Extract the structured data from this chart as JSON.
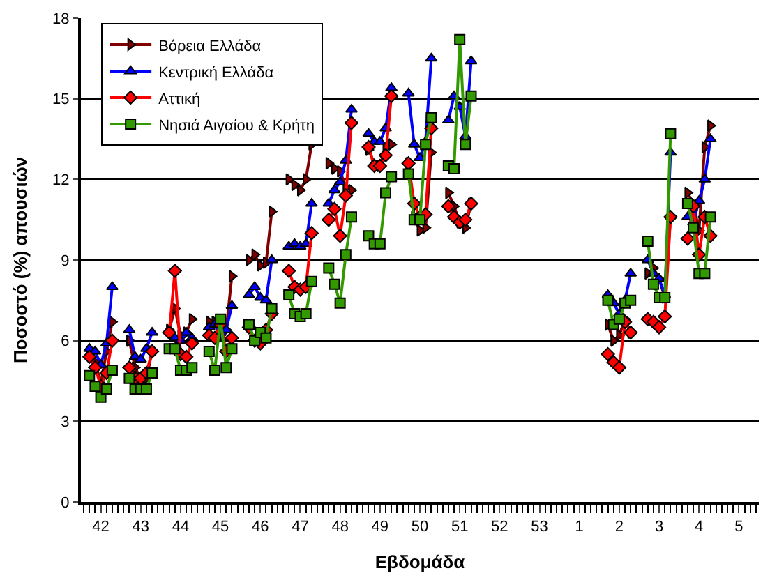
{
  "chart_data": {
    "type": "line",
    "xlabel": "Εβδομάδα",
    "ylabel": "Ποσοστό (%) απουσιών",
    "categories": [
      null,
      null,
      null,
      "42",
      null,
      null,
      null,
      null,
      null,
      null,
      "43",
      null,
      null,
      null,
      null,
      null,
      null,
      "44",
      null,
      null,
      null,
      null,
      null,
      null,
      "45",
      null,
      null,
      null,
      null,
      null,
      null,
      "46",
      null,
      null,
      null,
      null,
      null,
      null,
      "47",
      null,
      null,
      null,
      null,
      null,
      null,
      "48",
      null,
      null,
      null,
      null,
      null,
      null,
      "49",
      null,
      null,
      null,
      null,
      null,
      null,
      "50",
      null,
      null,
      null,
      null,
      null,
      null,
      "51",
      null,
      null,
      null,
      null,
      null,
      null,
      "52",
      null,
      null,
      null,
      null,
      null,
      null,
      "53",
      null,
      null,
      null,
      null,
      null,
      null,
      "1",
      null,
      null,
      null,
      null,
      null,
      null,
      "2",
      null,
      null,
      null,
      null,
      null,
      null,
      "3",
      null,
      null,
      null,
      null,
      null,
      null,
      "4",
      null,
      null,
      null,
      null,
      null,
      null,
      "5",
      null,
      null,
      null
    ],
    "series": [
      {
        "name": "Βόρεια Ελλάδα",
        "color": "#800000",
        "marker": "triangle-right",
        "values": [
          null,
          5.5,
          5.2,
          4.4,
          5.6,
          6.7,
          null,
          null,
          6.0,
          5.0,
          4.6,
          4.6,
          5.6,
          null,
          null,
          6.4,
          7.2,
          6.2,
          6.3,
          6.8,
          null,
          null,
          6.7,
          6.7,
          6.2,
          6.4,
          8.4,
          null,
          null,
          9.0,
          9.2,
          8.8,
          8.9,
          10.8,
          null,
          null,
          12.0,
          11.8,
          11.6,
          12.0,
          13.3,
          null,
          null,
          12.6,
          12.4,
          12.3,
          11.7,
          11.6,
          null,
          null,
          13.1,
          12.6,
          12.5,
          13.2,
          13.3,
          null,
          null,
          12.6,
          10.6,
          10.1,
          10.2,
          13.0,
          null,
          null,
          11.5,
          11.0,
          10.4,
          10.2,
          11.1,
          null,
          null,
          null,
          null,
          null,
          null,
          null,
          null,
          null,
          null,
          null,
          null,
          null,
          null,
          null,
          null,
          null,
          null,
          null,
          null,
          null,
          null,
          null,
          6.6,
          6.0,
          6.2,
          6.8,
          6.3,
          null,
          null,
          8.5,
          8.7,
          8.3,
          7.6,
          10.6,
          null,
          null,
          11.5,
          11.1,
          10.1,
          13.2,
          14.0,
          null,
          null,
          null,
          null,
          null,
          null,
          null,
          null
        ]
      },
      {
        "name": "Κεντρική Ελλάδα",
        "color": "#0000ff",
        "marker": "triangle",
        "values": [
          null,
          5.7,
          5.6,
          5.1,
          5.9,
          8.0,
          null,
          null,
          6.4,
          5.4,
          5.3,
          5.7,
          6.3,
          null,
          null,
          6.4,
          6.1,
          6.0,
          6.3,
          6.1,
          null,
          null,
          6.5,
          6.6,
          6.1,
          6.4,
          7.3,
          null,
          null,
          7.7,
          8.0,
          7.6,
          7.5,
          9.0,
          null,
          null,
          9.5,
          9.6,
          9.5,
          9.6,
          11.1,
          null,
          null,
          11.1,
          11.6,
          11.9,
          12.7,
          14.6,
          null,
          null,
          13.7,
          13.4,
          13.4,
          13.9,
          15.4,
          null,
          null,
          15.2,
          13.3,
          12.8,
          13.4,
          16.5,
          null,
          null,
          14.2,
          15.1,
          14.7,
          13.6,
          16.4,
          null,
          null,
          null,
          null,
          null,
          null,
          null,
          null,
          null,
          null,
          null,
          null,
          null,
          null,
          null,
          null,
          null,
          null,
          null,
          null,
          null,
          null,
          null,
          7.7,
          7.4,
          7.0,
          7.5,
          8.5,
          null,
          null,
          9.0,
          8.5,
          8.3,
          7.7,
          13.0,
          null,
          null,
          10.6,
          10.4,
          11.2,
          12.0,
          13.5,
          null,
          null,
          null,
          null,
          null,
          null,
          null,
          null
        ]
      },
      {
        "name": "Αττική",
        "color": "#ff0000",
        "marker": "diamond",
        "values": [
          null,
          5.4,
          5.0,
          4.3,
          4.8,
          6.0,
          null,
          null,
          5.0,
          4.6,
          4.6,
          4.8,
          5.6,
          null,
          null,
          6.3,
          8.6,
          5.5,
          5.4,
          5.9,
          null,
          null,
          6.2,
          6.1,
          6.6,
          5.6,
          6.1,
          null,
          null,
          6.5,
          6.0,
          5.9,
          6.4,
          7.0,
          null,
          null,
          8.6,
          8.0,
          7.9,
          8.0,
          10.0,
          null,
          null,
          10.5,
          10.9,
          9.9,
          11.4,
          14.1,
          null,
          null,
          13.2,
          12.5,
          12.5,
          12.9,
          15.1,
          null,
          null,
          12.6,
          11.1,
          10.6,
          10.7,
          13.9,
          null,
          null,
          11.0,
          10.6,
          10.4,
          10.5,
          11.1,
          null,
          null,
          null,
          null,
          null,
          null,
          null,
          null,
          null,
          null,
          null,
          null,
          null,
          null,
          null,
          null,
          null,
          null,
          null,
          null,
          null,
          null,
          null,
          5.5,
          5.2,
          5.0,
          6.7,
          6.3,
          null,
          null,
          6.8,
          6.7,
          6.5,
          6.9,
          10.6,
          null,
          null,
          9.8,
          11.0,
          9.2,
          10.6,
          9.9,
          null,
          null,
          null,
          null,
          null,
          null,
          null,
          null
        ]
      },
      {
        "name": "Νησιά Αιγαίου & Κρήτη",
        "color": "#339900",
        "marker": "square",
        "values": [
          null,
          4.7,
          4.3,
          3.9,
          4.2,
          4.9,
          null,
          null,
          4.6,
          4.2,
          4.2,
          4.2,
          4.8,
          null,
          null,
          5.7,
          5.7,
          4.9,
          4.9,
          5.0,
          null,
          null,
          5.6,
          4.9,
          6.8,
          5.0,
          5.7,
          null,
          null,
          6.6,
          6.0,
          6.3,
          6.1,
          7.2,
          null,
          null,
          7.7,
          7.0,
          6.9,
          7.0,
          8.2,
          null,
          null,
          8.7,
          8.1,
          7.4,
          9.2,
          10.6,
          null,
          null,
          9.9,
          9.6,
          9.6,
          11.5,
          12.1,
          null,
          null,
          12.2,
          10.5,
          10.5,
          13.3,
          14.3,
          null,
          null,
          12.5,
          12.4,
          17.2,
          13.3,
          15.1,
          null,
          null,
          null,
          null,
          null,
          null,
          null,
          null,
          null,
          null,
          null,
          null,
          null,
          null,
          null,
          null,
          null,
          null,
          null,
          null,
          null,
          null,
          null,
          7.5,
          6.6,
          6.8,
          7.4,
          7.5,
          null,
          null,
          9.7,
          8.1,
          7.6,
          7.6,
          13.7,
          null,
          null,
          11.1,
          10.2,
          8.5,
          8.5,
          10.6,
          null,
          null,
          null,
          null,
          null,
          null,
          null,
          null
        ]
      }
    ],
    "ylim": [
      0,
      18
    ],
    "yticks": [
      0,
      3,
      6,
      9,
      12,
      15,
      18
    ],
    "grid": "y",
    "legend": "top left",
    "line_style": "solid"
  }
}
